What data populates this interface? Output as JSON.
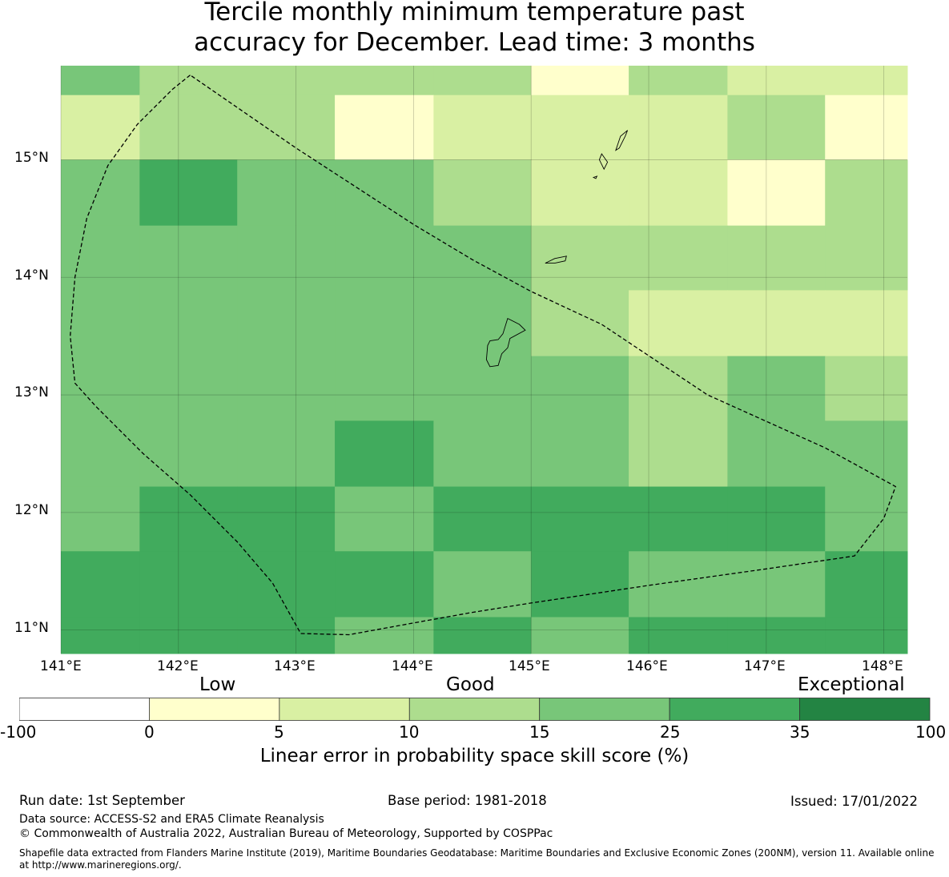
{
  "title": {
    "line1": "Tercile monthly minimum temperature past",
    "line2": "accuracy for December. Lead time: 3 months"
  },
  "map": {
    "lon_labels": [
      "141°E",
      "142°E",
      "143°E",
      "144°E",
      "145°E",
      "146°E",
      "147°E",
      "148°E"
    ],
    "lat_labels": [
      "15°N",
      "14°N",
      "13°N",
      "12°N",
      "11°N"
    ],
    "lon_range": [
      141.0,
      148.2
    ],
    "lat_range": [
      10.8,
      15.8
    ],
    "grid": true,
    "cell_lon_edges": [
      141.0,
      141.67,
      142.5,
      143.33,
      144.17,
      145.0,
      145.83,
      146.67,
      147.5,
      148.2
    ],
    "cell_lat_edges": [
      15.8,
      15.55,
      15.0,
      14.44,
      13.89,
      13.33,
      12.78,
      12.22,
      11.67,
      11.11,
      10.8
    ],
    "cell_classes": [
      [
        4,
        3,
        3,
        3,
        3,
        1,
        3,
        2,
        2
      ],
      [
        2,
        3,
        3,
        1,
        2,
        2,
        2,
        3,
        1
      ],
      [
        4,
        5,
        4,
        4,
        3,
        2,
        2,
        1,
        3
      ],
      [
        4,
        4,
        4,
        4,
        4,
        3,
        3,
        3,
        3
      ],
      [
        4,
        4,
        4,
        4,
        4,
        3,
        2,
        2,
        2
      ],
      [
        4,
        4,
        4,
        4,
        4,
        4,
        3,
        4,
        3
      ],
      [
        4,
        4,
        4,
        5,
        4,
        4,
        3,
        4,
        4
      ],
      [
        4,
        5,
        5,
        4,
        5,
        5,
        5,
        5,
        4
      ],
      [
        5,
        5,
        5,
        5,
        4,
        5,
        4,
        4,
        5
      ],
      [
        5,
        5,
        5,
        4,
        5,
        4,
        5,
        5,
        5
      ]
    ],
    "boundary_lonlat": [
      [
        142.1,
        15.72
      ],
      [
        141.95,
        15.6
      ],
      [
        141.65,
        15.3
      ],
      [
        141.4,
        14.95
      ],
      [
        141.22,
        14.5
      ],
      [
        141.12,
        14.0
      ],
      [
        141.08,
        13.5
      ],
      [
        141.12,
        13.1
      ],
      [
        141.3,
        12.9
      ],
      [
        141.7,
        12.5
      ],
      [
        142.1,
        12.15
      ],
      [
        142.5,
        11.75
      ],
      [
        142.8,
        11.4
      ],
      [
        143.04,
        10.97
      ],
      [
        143.45,
        10.96
      ],
      [
        144.0,
        11.06
      ],
      [
        144.5,
        11.15
      ],
      [
        145.0,
        11.23
      ],
      [
        146.0,
        11.38
      ],
      [
        147.0,
        11.52
      ],
      [
        147.75,
        11.63
      ],
      [
        148.0,
        11.95
      ],
      [
        148.1,
        12.22
      ],
      [
        147.5,
        12.55
      ],
      [
        146.5,
        13.0
      ],
      [
        145.6,
        13.6
      ],
      [
        145.0,
        13.88
      ],
      [
        144.5,
        14.15
      ],
      [
        144.0,
        14.45
      ],
      [
        143.0,
        15.1
      ],
      [
        142.1,
        15.72
      ]
    ],
    "islands": [
      {
        "name": "guam",
        "lonlat": [
          [
            144.8,
            13.65
          ],
          [
            144.9,
            13.6
          ],
          [
            144.95,
            13.55
          ],
          [
            144.82,
            13.48
          ],
          [
            144.8,
            13.4
          ],
          [
            144.75,
            13.35
          ],
          [
            144.72,
            13.25
          ],
          [
            144.65,
            13.24
          ],
          [
            144.62,
            13.3
          ],
          [
            144.63,
            13.42
          ],
          [
            144.65,
            13.46
          ],
          [
            144.72,
            13.47
          ],
          [
            144.76,
            13.52
          ],
          [
            144.8,
            13.65
          ]
        ]
      },
      {
        "name": "rota",
        "lonlat": [
          [
            145.12,
            14.12
          ],
          [
            145.2,
            14.16
          ],
          [
            145.3,
            14.18
          ],
          [
            145.29,
            14.14
          ],
          [
            145.2,
            14.12
          ],
          [
            145.12,
            14.12
          ]
        ]
      },
      {
        "name": "saipan",
        "lonlat": [
          [
            145.72,
            15.08
          ],
          [
            145.76,
            15.2
          ],
          [
            145.82,
            15.25
          ],
          [
            145.8,
            15.2
          ],
          [
            145.75,
            15.1
          ],
          [
            145.72,
            15.08
          ]
        ]
      },
      {
        "name": "tinian",
        "lonlat": [
          [
            145.58,
            15.0
          ],
          [
            145.6,
            15.05
          ],
          [
            145.65,
            14.98
          ],
          [
            145.62,
            14.92
          ],
          [
            145.58,
            15.0
          ]
        ]
      },
      {
        "name": "aguijan",
        "lonlat": [
          [
            145.53,
            14.85
          ],
          [
            145.56,
            14.86
          ],
          [
            145.55,
            14.84
          ],
          [
            145.53,
            14.85
          ]
        ]
      }
    ]
  },
  "colorbar": {
    "words": [
      "Low",
      "Good",
      "Exceptional"
    ],
    "ticks": [
      "-100",
      "0",
      "5",
      "10",
      "15",
      "25",
      "35",
      "100"
    ],
    "colors": [
      "#ffffff",
      "#ffffcc",
      "#d9f0a3",
      "#addd8e",
      "#78c679",
      "#41ab5d",
      "#238443"
    ],
    "label": "Linear error in probability space skill score (%)"
  },
  "footer": {
    "run_date": "Run date: 1st September",
    "base_period": "Base period: 1981-2018",
    "issued": "Issued: 17/01/2022",
    "data_source": "Data source: ACCESS-S2 and ERA5 Climate Reanalysis",
    "copyright": "© Commonwealth of Australia 2022, Australian Bureau of Meteorology, Supported by COSPPac",
    "shapefile_line1": "Shapefile data extracted from Flanders Marine Institute (2019), Maritime Boundaries Geodatabase: Maritime Boundaries and Exclusive Economic Zones (200NM), version 11. Available online",
    "shapefile_line2": "at http://www.marineregions.org/."
  }
}
